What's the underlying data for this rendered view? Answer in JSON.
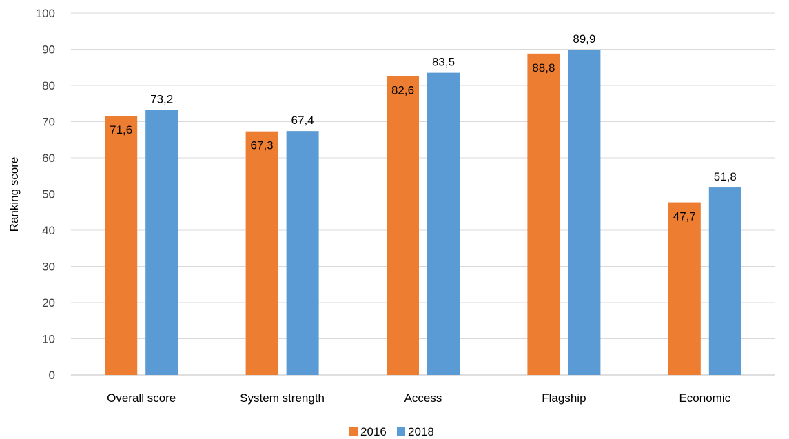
{
  "chart_data": {
    "type": "bar",
    "title": "",
    "xlabel": "",
    "ylabel": "Ranking score",
    "ylim": [
      0,
      100
    ],
    "yticks": [
      0,
      10,
      20,
      30,
      40,
      50,
      60,
      70,
      80,
      90,
      100
    ],
    "grid": true,
    "legend": "bottom",
    "categories": [
      "Overall score",
      "System strength",
      "Access",
      "Flagship",
      "Economic"
    ],
    "series": [
      {
        "name": "2016",
        "color": "#ED7D31",
        "values": [
          71.6,
          67.3,
          82.6,
          88.8,
          47.7
        ],
        "labels": [
          "71,6",
          "67,3",
          "82,6",
          "88,8",
          "47,7"
        ]
      },
      {
        "name": "2018",
        "color": "#5B9BD5",
        "values": [
          73.2,
          67.4,
          83.5,
          89.9,
          51.8
        ],
        "labels": [
          "73,2",
          "67,4",
          "83,5",
          "89,9",
          "51,8"
        ]
      }
    ]
  }
}
